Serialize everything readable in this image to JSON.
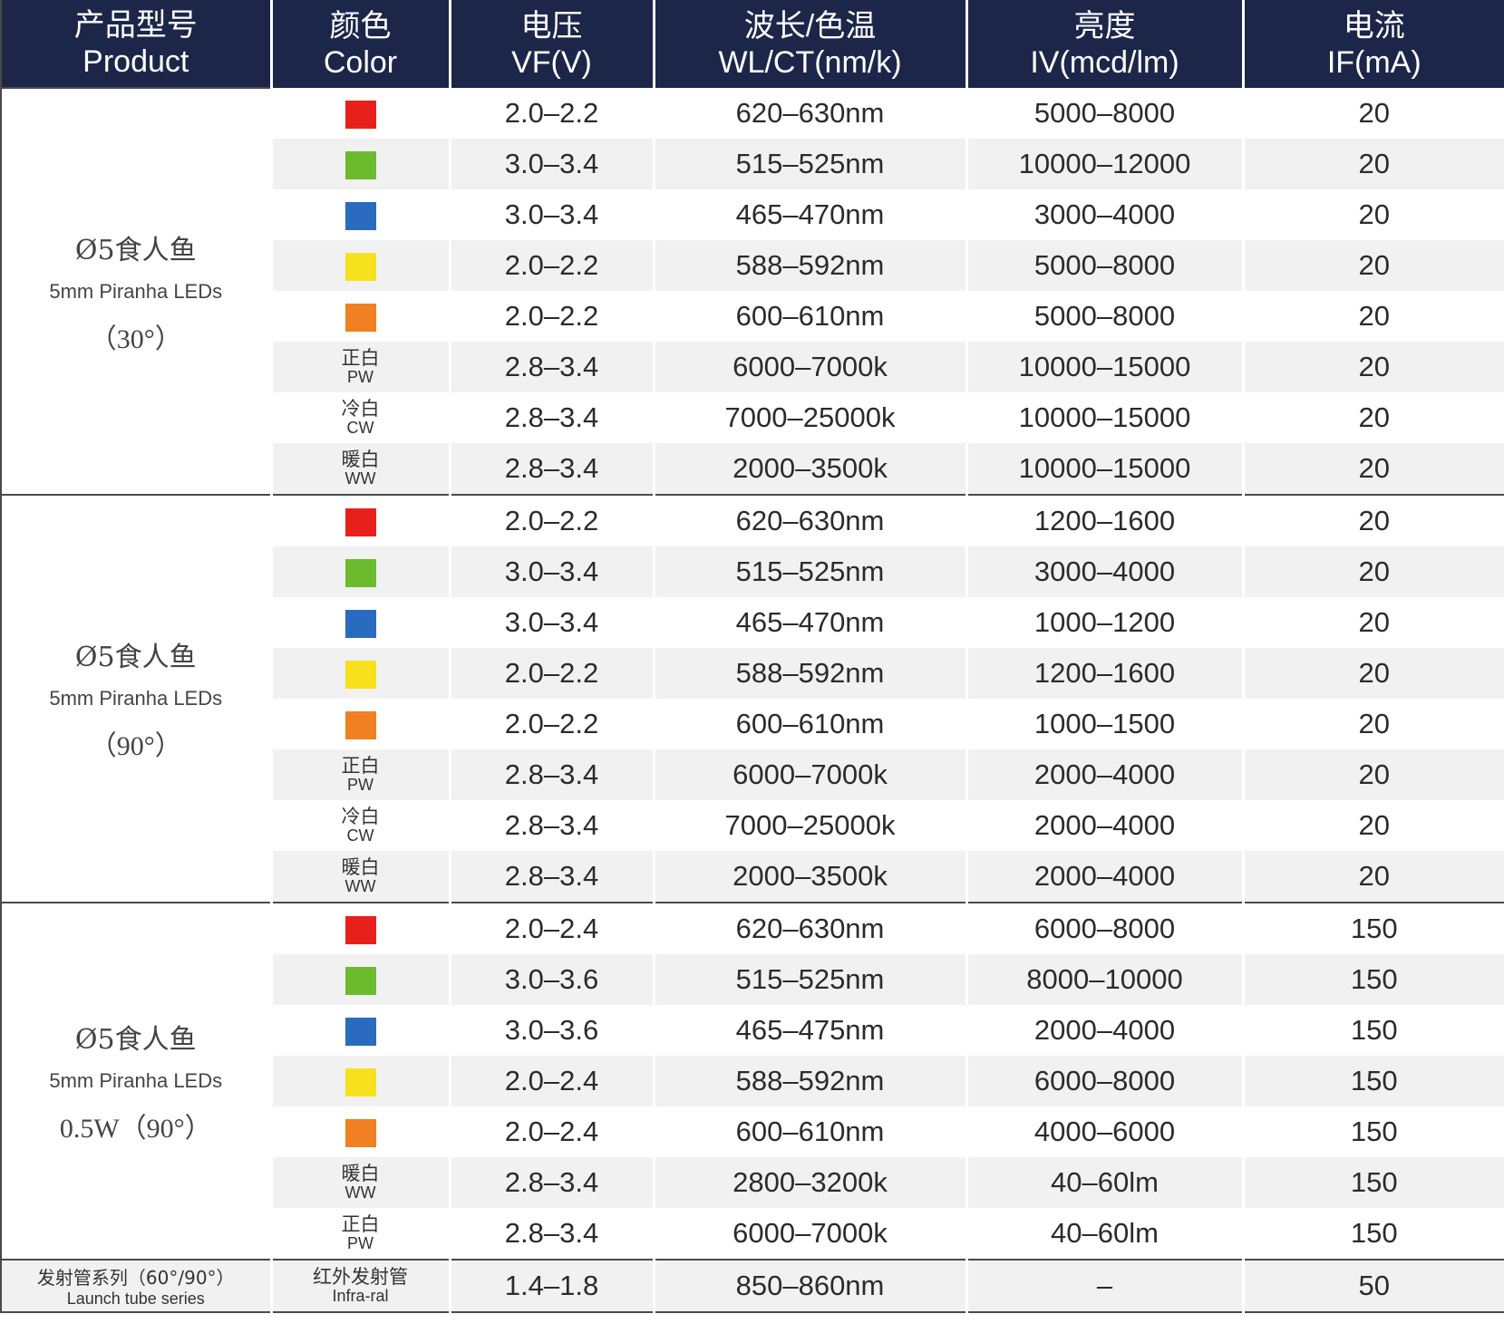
{
  "headers": [
    {
      "cn": "产品型号",
      "en": "Product"
    },
    {
      "cn": "颜色",
      "en": "Color"
    },
    {
      "cn": "电压",
      "en": "VF(V)"
    },
    {
      "cn": "波长/色温",
      "en": "WL/CT(nm/k)"
    },
    {
      "cn": "亮度",
      "en": "IV(mcd/lm)"
    },
    {
      "cn": "电流",
      "en": "IF(mA)"
    }
  ],
  "colors": {
    "header_bg": "#1c2649",
    "red": "#e8201c",
    "green": "#6cbb2f",
    "blue": "#2a6bc0",
    "yellow": "#f7e11e",
    "orange": "#f08021",
    "row_shade": "#f1f1f1"
  },
  "groups": [
    {
      "product": {
        "cn": "Ø5食人鱼",
        "en": "5mm Piranha LEDs",
        "angle": "（30°）"
      },
      "rows": [
        {
          "color": {
            "swatch": "red"
          },
          "vf": "2.0–2.2",
          "wl": "620–630nm",
          "iv": "5000–8000",
          "if": "20"
        },
        {
          "color": {
            "swatch": "green"
          },
          "vf": "3.0–3.4",
          "wl": "515–525nm",
          "iv": "10000–12000",
          "if": "20"
        },
        {
          "color": {
            "swatch": "blue"
          },
          "vf": "3.0–3.4",
          "wl": "465–470nm",
          "iv": "3000–4000",
          "if": "20"
        },
        {
          "color": {
            "swatch": "yellow"
          },
          "vf": "2.0–2.2",
          "wl": "588–592nm",
          "iv": "5000–8000",
          "if": "20"
        },
        {
          "color": {
            "swatch": "orange"
          },
          "vf": "2.0–2.2",
          "wl": "600–610nm",
          "iv": "5000–8000",
          "if": "20"
        },
        {
          "color": {
            "cn": "正白",
            "en": "PW"
          },
          "vf": "2.8–3.4",
          "wl": "6000–7000k",
          "iv": "10000–15000",
          "if": "20"
        },
        {
          "color": {
            "cn": "冷白",
            "en": "CW"
          },
          "vf": "2.8–3.4",
          "wl": "7000–25000k",
          "iv": "10000–15000",
          "if": "20"
        },
        {
          "color": {
            "cn": "暖白",
            "en": "WW"
          },
          "vf": "2.8–3.4",
          "wl": "2000–3500k",
          "iv": "10000–15000",
          "if": "20"
        }
      ]
    },
    {
      "product": {
        "cn": "Ø5食人鱼",
        "en": "5mm Piranha LEDs",
        "angle": "（90°）"
      },
      "rows": [
        {
          "color": {
            "swatch": "red"
          },
          "vf": "2.0–2.2",
          "wl": "620–630nm",
          "iv": "1200–1600",
          "if": "20"
        },
        {
          "color": {
            "swatch": "green"
          },
          "vf": "3.0–3.4",
          "wl": "515–525nm",
          "iv": "3000–4000",
          "if": "20"
        },
        {
          "color": {
            "swatch": "blue"
          },
          "vf": "3.0–3.4",
          "wl": "465–470nm",
          "iv": "1000–1200",
          "if": "20"
        },
        {
          "color": {
            "swatch": "yellow"
          },
          "vf": "2.0–2.2",
          "wl": "588–592nm",
          "iv": "1200–1600",
          "if": "20"
        },
        {
          "color": {
            "swatch": "orange"
          },
          "vf": "2.0–2.2",
          "wl": "600–610nm",
          "iv": "1000–1500",
          "if": "20"
        },
        {
          "color": {
            "cn": "正白",
            "en": "PW"
          },
          "vf": "2.8–3.4",
          "wl": "6000–7000k",
          "iv": "2000–4000",
          "if": "20"
        },
        {
          "color": {
            "cn": "冷白",
            "en": "CW"
          },
          "vf": "2.8–3.4",
          "wl": "7000–25000k",
          "iv": "2000–4000",
          "if": "20"
        },
        {
          "color": {
            "cn": "暖白",
            "en": "WW"
          },
          "vf": "2.8–3.4",
          "wl": "2000–3500k",
          "iv": "2000–4000",
          "if": "20"
        }
      ]
    },
    {
      "product": {
        "cn": "Ø5食人鱼",
        "en": "5mm Piranha LEDs",
        "angle": "0.5W（90°）"
      },
      "rows": [
        {
          "color": {
            "swatch": "red"
          },
          "vf": "2.0–2.4",
          "wl": "620–630nm",
          "iv": "6000–8000",
          "if": "150"
        },
        {
          "color": {
            "swatch": "green"
          },
          "vf": "3.0–3.6",
          "wl": "515–525nm",
          "iv": "8000–10000",
          "if": "150"
        },
        {
          "color": {
            "swatch": "blue"
          },
          "vf": "3.0–3.6",
          "wl": "465–475nm",
          "iv": "2000–4000",
          "if": "150"
        },
        {
          "color": {
            "swatch": "yellow"
          },
          "vf": "2.0–2.4",
          "wl": "588–592nm",
          "iv": "6000–8000",
          "if": "150"
        },
        {
          "color": {
            "swatch": "orange"
          },
          "vf": "2.0–2.4",
          "wl": "600–610nm",
          "iv": "4000–6000",
          "if": "150"
        },
        {
          "color": {
            "cn": "暖白",
            "en": "WW"
          },
          "vf": "2.8–3.4",
          "wl": "2800–3200k",
          "iv": "40–60lm",
          "if": "150"
        },
        {
          "color": {
            "cn": "正白",
            "en": "PW"
          },
          "vf": "2.8–3.4",
          "wl": "6000–7000k",
          "iv": "40–60lm",
          "if": "150"
        }
      ]
    }
  ],
  "launch": {
    "product": {
      "cn": "发射管系列（60°/90°）",
      "en": "Launch tube series"
    },
    "color": {
      "cn": "红外发射管",
      "en": "Infra-ral"
    },
    "vf": "1.4–1.8",
    "wl": "850–860nm",
    "iv": "–",
    "if": "50"
  }
}
